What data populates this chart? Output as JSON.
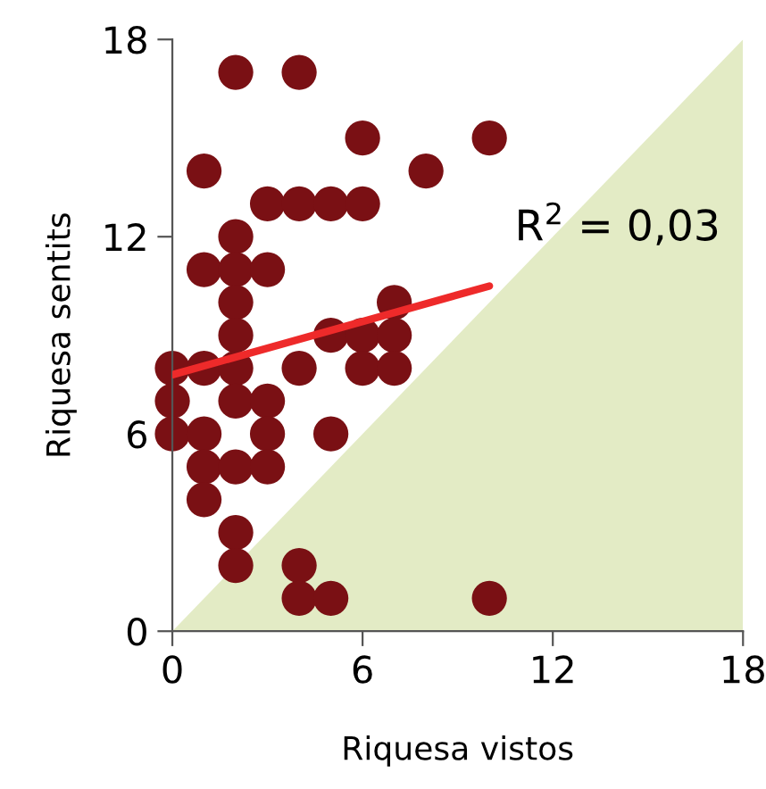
{
  "chart_data": {
    "type": "scatter",
    "xlabel": "Riquesa vistos",
    "ylabel": "Riquesa sentits",
    "xlim": [
      0,
      18
    ],
    "ylim": [
      0,
      18
    ],
    "xticks": [
      0,
      6,
      12,
      18
    ],
    "yticks": [
      0,
      6,
      12,
      18
    ],
    "grid": false,
    "legend": false,
    "annotations": [
      "R$^{2}$ = 0,03"
    ],
    "series": [
      {
        "type": "area",
        "color": "#e3ebc5",
        "x": [
          0,
          18
        ],
        "values": [
          0,
          18
        ]
      },
      {
        "marker": "circle",
        "color": "#7a1014",
        "x": [
          2,
          4,
          6,
          10,
          1,
          8,
          3,
          4,
          5,
          6,
          2,
          1,
          2,
          3,
          2,
          7,
          2,
          5,
          6,
          7,
          0,
          1,
          2,
          4,
          6,
          7,
          0,
          2,
          3,
          0,
          1,
          3,
          5,
          1,
          2,
          3,
          1,
          2,
          2,
          4,
          4,
          5,
          10
        ],
        "values": [
          17,
          17,
          15,
          15,
          14,
          14,
          13,
          13,
          13,
          13,
          12,
          11,
          11,
          11,
          10,
          10,
          9,
          9,
          9,
          9,
          8,
          8,
          8,
          8,
          8,
          8,
          7,
          7,
          7,
          6,
          6,
          6,
          6,
          5,
          5,
          5,
          4,
          3,
          2,
          2,
          1,
          1,
          1
        ]
      },
      {
        "type": "line",
        "color": "#ee2a2a",
        "x": [
          0,
          10
        ],
        "values": [
          7.8,
          10.5
        ],
        "line_style": "solid"
      }
    ]
  }
}
